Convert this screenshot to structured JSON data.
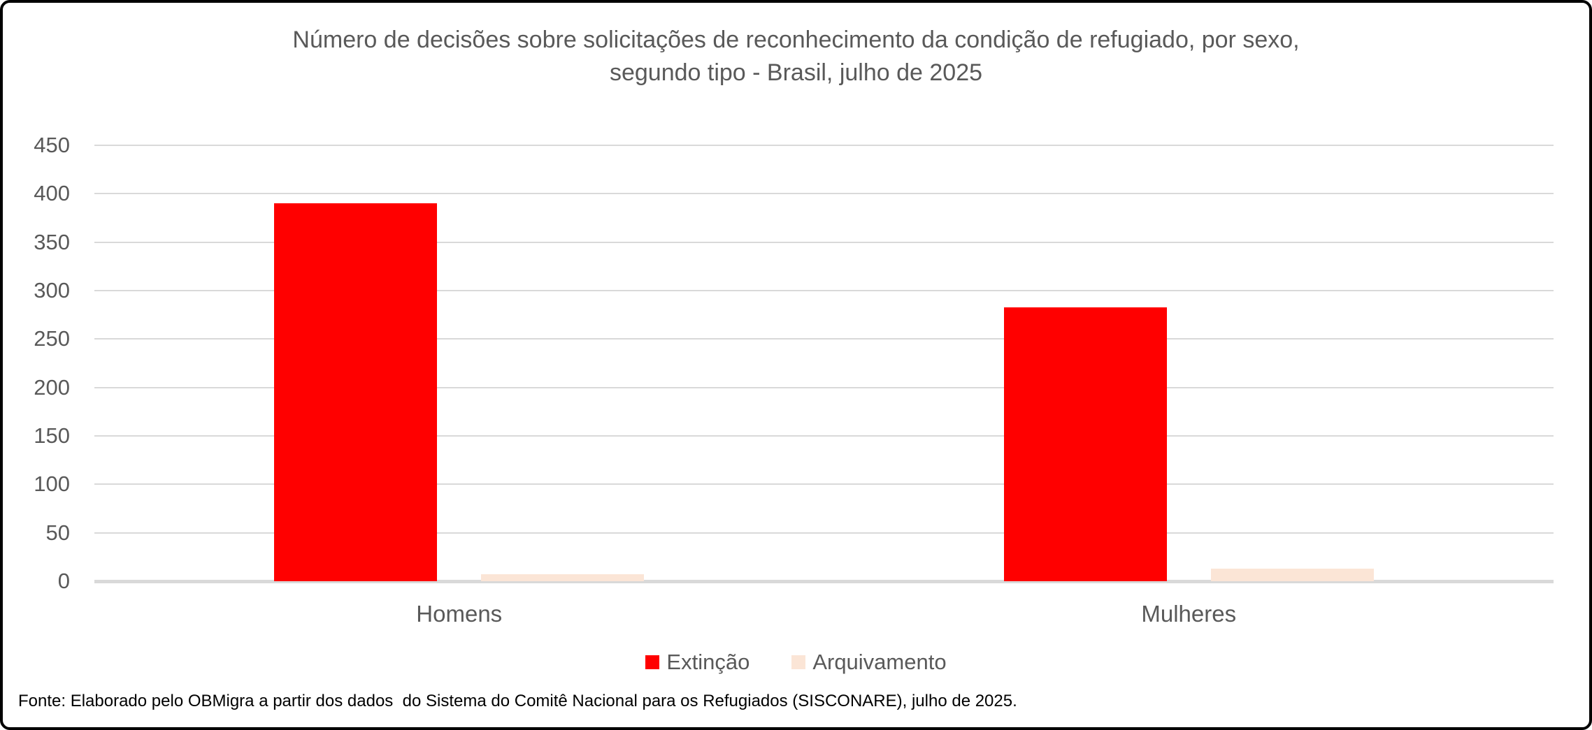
{
  "chart_data": {
    "type": "bar",
    "title": "Número de decisões sobre solicitações de reconhecimento da condição de refugiado, por sexo, segundo tipo - Brasil, julho de 2025",
    "title_line1": "Número de decisões sobre solicitações de reconhecimento da condição de refugiado, por sexo,",
    "title_line2": "segundo tipo - Brasil, julho de 2025",
    "categories": [
      "Homens",
      "Mulheres"
    ],
    "series": [
      {
        "name": "Extinção",
        "color": "#ff0000",
        "values": [
          390,
          283
        ]
      },
      {
        "name": "Arquivamento",
        "color": "#fbe5d6",
        "values": [
          7,
          13
        ]
      }
    ],
    "xlabel": "",
    "ylabel": "",
    "ylim": [
      0,
      450
    ],
    "yticks": [
      0,
      50,
      100,
      150,
      200,
      250,
      300,
      350,
      400,
      450
    ],
    "grid": true,
    "legend_position": "bottom",
    "text_color": "#595959",
    "gridline_color": "#d9d9d9"
  },
  "footer": {
    "source": "Fonte: Elaborado pelo OBMigra a partir dos dados  do Sistema do Comitê Nacional para os Refugiados (SISCONARE), julho de 2025."
  }
}
